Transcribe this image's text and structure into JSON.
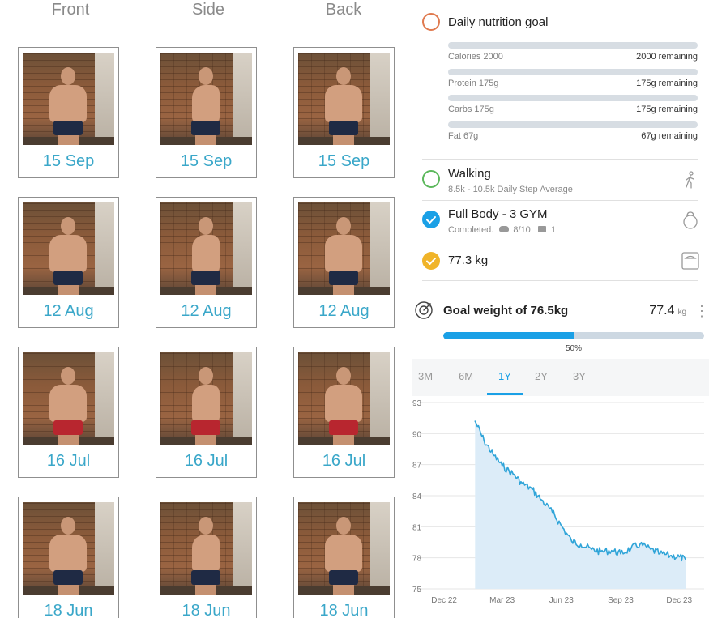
{
  "photos": {
    "columns": [
      "Front",
      "Side",
      "Back"
    ],
    "rows": [
      {
        "date": "15 Sep",
        "shorts": "navy"
      },
      {
        "date": "12 Aug",
        "shorts": "navy"
      },
      {
        "date": "16 Jul",
        "shorts": "red"
      },
      {
        "date": "18 Jun",
        "shorts": "navy"
      }
    ]
  },
  "nutrition": {
    "title": "Daily nutrition goal",
    "items": [
      {
        "label": "Calories 2000",
        "remaining": "2000 remaining"
      },
      {
        "label": "Protein 175g",
        "remaining": "175g remaining"
      },
      {
        "label": "Carbs 175g",
        "remaining": "175g remaining"
      },
      {
        "label": "Fat 67g",
        "remaining": "67g remaining"
      }
    ]
  },
  "walking": {
    "title": "Walking",
    "subtitle": "8.5k - 10.5k Daily Step Average",
    "icon": "walking-person-icon"
  },
  "workout": {
    "title": "Full Body - 3 GYM",
    "status": "Completed.",
    "progress": "8/10",
    "comments": "1",
    "icon": "kettlebell-icon"
  },
  "weigh_in": {
    "value": "77.3 kg",
    "icon": "scale-icon"
  },
  "goal": {
    "title": "Goal weight of 76.5kg",
    "current": "77.4",
    "unit": "kg",
    "progress_percent": 50,
    "progress_label": "50%"
  },
  "range_tabs": [
    {
      "label": "3M",
      "active": false
    },
    {
      "label": "6M",
      "active": false
    },
    {
      "label": "1Y",
      "active": true
    },
    {
      "label": "2Y",
      "active": false
    },
    {
      "label": "3Y",
      "active": false
    }
  ],
  "colors": {
    "accent": "#1aa0e6",
    "nutrition_ring": "#e07a4f",
    "walking_ring": "#5cb85c",
    "workout_check": "#1aa0e6",
    "weigh_check": "#f0b429",
    "date_text": "#3aa7c9"
  },
  "chart_data": {
    "type": "area",
    "y_ticks": [
      "93",
      "90",
      "87",
      "84",
      "81",
      "78",
      "75"
    ],
    "ylim": [
      75,
      93
    ],
    "x_ticks": [
      "Dec 22",
      "Mar 23",
      "Jun 23",
      "Sep 23",
      "Dec 23"
    ],
    "x": [
      "2023-02-01",
      "2023-02-15",
      "2023-03-01",
      "2023-03-15",
      "2023-04-01",
      "2023-04-15",
      "2023-05-01",
      "2023-05-15",
      "2023-06-01",
      "2023-06-15",
      "2023-07-01",
      "2023-07-15",
      "2023-08-01",
      "2023-08-15",
      "2023-09-01",
      "2023-09-15",
      "2023-10-01",
      "2023-10-15",
      "2023-11-01",
      "2023-11-15",
      "2023-12-01",
      "2023-12-15",
      "2023-12-25"
    ],
    "series": [
      {
        "values": [
          91.2,
          89.3,
          88.0,
          86.9,
          86.1,
          85.2,
          84.6,
          83.6,
          82.4,
          81.1,
          79.6,
          79.3,
          78.8,
          78.6,
          78.7,
          78.4,
          78.9,
          79.3,
          78.8,
          78.4,
          78.2,
          78.1,
          77.8
        ]
      }
    ],
    "grid": true,
    "legend": "none"
  }
}
